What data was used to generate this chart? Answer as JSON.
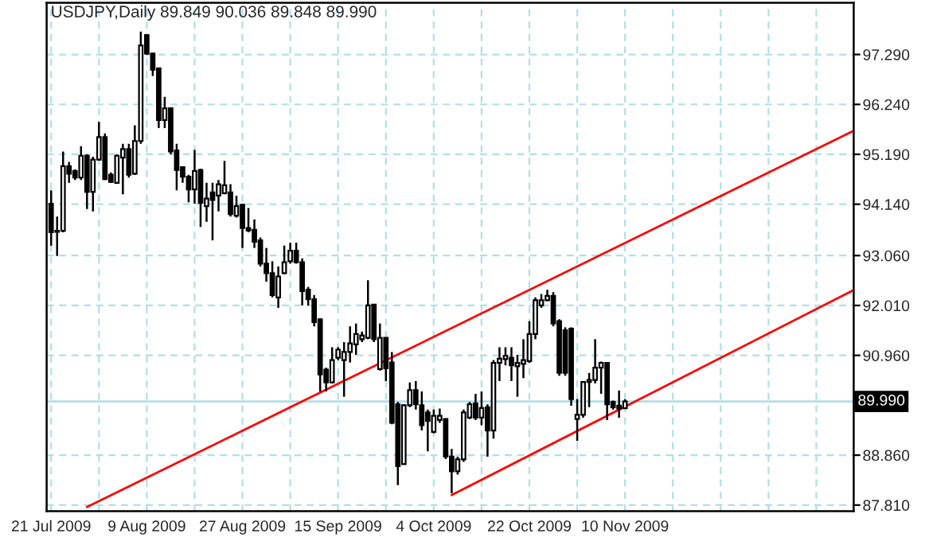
{
  "chart_data": {
    "type": "candlestick",
    "title": "USDJPY,Daily 89.849 90.036 89.848 89.990",
    "categories": [
      "21 Jul 2009",
      null,
      null,
      null,
      null,
      null,
      null,
      null,
      null,
      null,
      null,
      null,
      null,
      null,
      null,
      null,
      "9 Aug 2009",
      null,
      null,
      null,
      null,
      null,
      null,
      null,
      null,
      null,
      null,
      null,
      null,
      null,
      null,
      null,
      "27 Aug 2009",
      null,
      null,
      null,
      null,
      null,
      null,
      null,
      null,
      null,
      null,
      null,
      null,
      null,
      null,
      null,
      "15 Sep 2009",
      null,
      null,
      null,
      null,
      null,
      null,
      null,
      null,
      null,
      null,
      null,
      null,
      null,
      null,
      null,
      "4 Oct 2009",
      null,
      null,
      null,
      null,
      null,
      null,
      null,
      null,
      null,
      null,
      null,
      null,
      null,
      null,
      null,
      "22 Oct 2009",
      null,
      null,
      null,
      null,
      null,
      null,
      null,
      null,
      null,
      null,
      null,
      null,
      null,
      null,
      null,
      "10 Nov 2009",
      null,
      null,
      null,
      null,
      null,
      null,
      null,
      null,
      null,
      null,
      null,
      null,
      null,
      null,
      null,
      null,
      null,
      null,
      null,
      null,
      null,
      null,
      null,
      null,
      null,
      null,
      null,
      null,
      null,
      null,
      null,
      null,
      null,
      null,
      null,
      null,
      null,
      null
    ],
    "ohlc": [
      [
        94.15,
        94.43,
        93.27,
        93.55
      ],
      [
        93.58,
        93.88,
        93.05,
        93.56
      ],
      [
        93.58,
        95.25,
        93.55,
        94.94
      ],
      [
        94.94,
        95.03,
        94.59,
        94.78
      ],
      [
        94.84,
        94.87,
        94.65,
        94.7
      ],
      [
        94.7,
        95.36,
        94.65,
        95.16
      ],
      [
        95.16,
        95.19,
        94.04,
        94.4
      ],
      [
        94.4,
        95.14,
        93.99,
        95.08
      ],
      [
        95.08,
        95.87,
        95.06,
        95.55
      ],
      [
        95.55,
        95.63,
        94.65,
        94.67
      ],
      [
        94.76,
        94.81,
        94.59,
        94.61
      ],
      [
        94.59,
        95.19,
        94.59,
        95.16
      ],
      [
        95.12,
        95.41,
        94.35,
        95.3
      ],
      [
        95.3,
        95.41,
        94.7,
        94.76
      ],
      [
        94.78,
        95.8,
        94.76,
        95.47
      ],
      [
        95.47,
        97.77,
        95.41,
        97.48
      ],
      [
        97.7,
        97.72,
        97.28,
        97.31
      ],
      [
        97.31,
        97.33,
        96.84,
        96.97
      ],
      [
        97.0,
        97.0,
        95.74,
        95.91
      ],
      [
        95.91,
        96.4,
        95.74,
        96.16
      ],
      [
        96.16,
        96.18,
        95.19,
        95.25
      ],
      [
        95.27,
        95.41,
        94.43,
        94.86
      ],
      [
        94.92,
        94.94,
        94.59,
        94.72
      ],
      [
        94.72,
        94.76,
        94.18,
        94.45
      ],
      [
        94.45,
        95.28,
        94.15,
        94.84
      ],
      [
        94.86,
        94.89,
        93.66,
        94.17
      ],
      [
        94.1,
        94.59,
        93.77,
        94.26
      ],
      [
        94.39,
        94.59,
        93.38,
        94.23
      ],
      [
        94.32,
        94.65,
        93.99,
        94.56
      ],
      [
        94.37,
        95.05,
        94.35,
        94.54
      ],
      [
        94.39,
        94.56,
        93.88,
        93.93
      ],
      [
        93.9,
        94.32,
        93.86,
        94.1
      ],
      [
        94.13,
        94.15,
        93.22,
        93.64
      ],
      [
        93.64,
        94.06,
        93.55,
        93.59
      ],
      [
        93.6,
        93.82,
        93.22,
        93.35
      ],
      [
        93.38,
        93.44,
        92.83,
        92.89
      ],
      [
        92.89,
        93.22,
        92.51,
        92.69
      ],
      [
        92.69,
        92.94,
        92.18,
        92.23
      ],
      [
        92.18,
        92.83,
        91.96,
        92.62
      ],
      [
        92.69,
        93.27,
        92.67,
        92.92
      ],
      [
        92.94,
        93.33,
        92.89,
        93.16
      ],
      [
        93.16,
        93.33,
        92.89,
        92.92
      ],
      [
        92.92,
        93.0,
        92.01,
        92.31
      ],
      [
        92.34,
        92.4,
        92.01,
        92.14
      ],
      [
        92.14,
        92.23,
        91.57,
        91.66
      ],
      [
        91.72,
        91.74,
        90.2,
        90.56
      ],
      [
        90.66,
        90.7,
        90.2,
        90.39
      ],
      [
        90.39,
        91.13,
        90.37,
        90.86
      ],
      [
        90.91,
        91.13,
        90.86,
        91.08
      ],
      [
        90.86,
        91.24,
        90.09,
        91.03
      ],
      [
        91.03,
        91.57,
        90.81,
        91.21
      ],
      [
        91.19,
        91.63,
        90.97,
        91.41
      ],
      [
        91.3,
        91.46,
        91.24,
        91.38
      ],
      [
        91.33,
        92.54,
        91.3,
        92.01
      ],
      [
        92.03,
        92.03,
        91.24,
        91.3
      ],
      [
        90.67,
        91.63,
        90.64,
        91.33
      ],
      [
        91.33,
        91.33,
        90.42,
        90.69
      ],
      [
        90.81,
        91.03,
        89.51,
        89.54
      ],
      [
        89.93,
        89.98,
        88.23,
        88.63
      ],
      [
        88.67,
        89.93,
        88.67,
        89.91
      ],
      [
        89.91,
        90.39,
        89.87,
        90.23
      ],
      [
        90.23,
        90.42,
        89.82,
        89.93
      ],
      [
        89.91,
        90.2,
        89.38,
        89.49
      ],
      [
        89.76,
        89.82,
        88.94,
        89.58
      ],
      [
        89.35,
        89.82,
        89.32,
        89.69
      ],
      [
        89.6,
        89.84,
        89.54,
        89.69
      ],
      [
        89.62,
        89.63,
        88.78,
        88.83
      ],
      [
        88.83,
        88.99,
        88.06,
        88.52
      ],
      [
        88.52,
        88.83,
        88.45,
        88.77
      ],
      [
        88.77,
        89.82,
        88.72,
        89.76
      ],
      [
        89.65,
        89.98,
        89.62,
        89.93
      ],
      [
        89.95,
        90.15,
        89.6,
        89.65
      ],
      [
        89.65,
        90.2,
        89.49,
        89.85
      ],
      [
        89.87,
        89.93,
        88.83,
        89.38
      ],
      [
        89.38,
        90.86,
        89.21,
        90.8
      ],
      [
        90.8,
        91.13,
        90.42,
        90.89
      ],
      [
        90.88,
        91.13,
        90.75,
        90.95
      ],
      [
        90.91,
        91.13,
        90.42,
        90.75
      ],
      [
        90.73,
        90.97,
        90.09,
        90.8
      ],
      [
        90.78,
        91.3,
        90.48,
        90.86
      ],
      [
        90.84,
        91.68,
        90.8,
        91.41
      ],
      [
        91.41,
        92.18,
        91.3,
        92.12
      ],
      [
        92.01,
        92.25,
        91.96,
        92.12
      ],
      [
        92.12,
        92.34,
        92.1,
        92.21
      ],
      [
        92.21,
        92.29,
        91.57,
        91.63
      ],
      [
        91.68,
        91.72,
        90.53,
        90.59
      ],
      [
        91.49,
        91.55,
        90.53,
        90.59
      ],
      [
        91.52,
        91.55,
        89.9,
        90.04
      ],
      [
        89.62,
        90.04,
        89.16,
        89.71
      ],
      [
        89.71,
        90.42,
        89.65,
        90.4
      ],
      [
        90.4,
        90.59,
        89.87,
        90.44
      ],
      [
        90.44,
        91.3,
        90.37,
        90.7
      ],
      [
        90.7,
        90.83,
        90.15,
        90.8
      ],
      [
        90.8,
        90.8,
        89.6,
        89.93
      ],
      [
        89.98,
        90.01,
        89.82,
        89.87
      ],
      [
        89.9,
        90.22,
        89.65,
        89.84
      ],
      [
        89.849,
        90.036,
        89.848,
        89.99
      ],
      null,
      null,
      null,
      null,
      null,
      null,
      null,
      null,
      null,
      null,
      null,
      null,
      null,
      null,
      null,
      null,
      null,
      null,
      null,
      null,
      null,
      null,
      null,
      null,
      null,
      null,
      null,
      null,
      null,
      null,
      null,
      null,
      null,
      null,
      null,
      null,
      null,
      null
    ],
    "series": [
      {
        "type": "line",
        "color": "#ff0000",
        "values": [
          null,
          null,
          null,
          null,
          null,
          null,
          87.77,
          null,
          null,
          null,
          null,
          null,
          null,
          null,
          null,
          null,
          null,
          null,
          null,
          null,
          null,
          null,
          null,
          null,
          null,
          null,
          null,
          null,
          null,
          null,
          null,
          null,
          null,
          null,
          null,
          null,
          null,
          null,
          null,
          null,
          null,
          null,
          null,
          null,
          null,
          null,
          null,
          null,
          null,
          null,
          null,
          null,
          null,
          null,
          null,
          null,
          null,
          null,
          null,
          null,
          null,
          null,
          null,
          null,
          null,
          null,
          null,
          null,
          null,
          null,
          null,
          null,
          null,
          null,
          null,
          null,
          null,
          null,
          null,
          null,
          null,
          null,
          null,
          null,
          null,
          null,
          null,
          null,
          null,
          null,
          null,
          null,
          null,
          null,
          null,
          null,
          null,
          null,
          null,
          null,
          null,
          null,
          null,
          null,
          null,
          null,
          null,
          null,
          null,
          null,
          null,
          null,
          null,
          null,
          null,
          null,
          null,
          null,
          null,
          null,
          null,
          null,
          null,
          null,
          null,
          null,
          null,
          null,
          null,
          null,
          null,
          null,
          null,
          null,
          95.67
        ]
      },
      {
        "type": "line",
        "color": "#ff0000",
        "values": [
          null,
          null,
          null,
          null,
          null,
          null,
          null,
          null,
          null,
          null,
          null,
          null,
          null,
          null,
          null,
          null,
          null,
          null,
          null,
          null,
          null,
          null,
          null,
          null,
          null,
          null,
          null,
          null,
          null,
          null,
          null,
          null,
          null,
          null,
          null,
          null,
          null,
          null,
          null,
          null,
          null,
          null,
          null,
          null,
          null,
          null,
          null,
          null,
          null,
          null,
          null,
          null,
          null,
          null,
          null,
          null,
          null,
          null,
          null,
          null,
          null,
          null,
          null,
          null,
          null,
          null,
          null,
          88.02,
          null,
          null,
          null,
          null,
          null,
          null,
          null,
          null,
          null,
          null,
          null,
          null,
          null,
          null,
          null,
          null,
          null,
          null,
          null,
          null,
          null,
          null,
          null,
          null,
          null,
          null,
          null,
          null,
          null,
          null,
          null,
          null,
          null,
          null,
          null,
          null,
          null,
          null,
          null,
          null,
          null,
          null,
          null,
          null,
          null,
          null,
          null,
          null,
          null,
          null,
          null,
          null,
          null,
          null,
          null,
          null,
          null,
          null,
          null,
          null,
          null,
          null,
          null,
          null,
          null,
          null,
          92.32
        ]
      }
    ],
    "ylim": [
      87.68,
      98.38
    ],
    "yticks": [
      {
        "value": 87.81,
        "label": "87.810"
      },
      {
        "value": 88.86,
        "label": "88.860"
      },
      {
        "value": 90.96,
        "label": "90.960"
      },
      {
        "value": 92.01,
        "label": "92.010"
      },
      {
        "value": 93.06,
        "label": "93.060"
      },
      {
        "value": 94.14,
        "label": "94.140"
      },
      {
        "value": 95.19,
        "label": "95.190"
      },
      {
        "value": 96.24,
        "label": "96.240"
      },
      {
        "value": 97.29,
        "label": "97.290"
      }
    ],
    "grid": true,
    "ref_lines": [
      {
        "axis": "y",
        "value": 89.99,
        "label": "89.990",
        "color": "#b0e0e6"
      }
    ]
  }
}
